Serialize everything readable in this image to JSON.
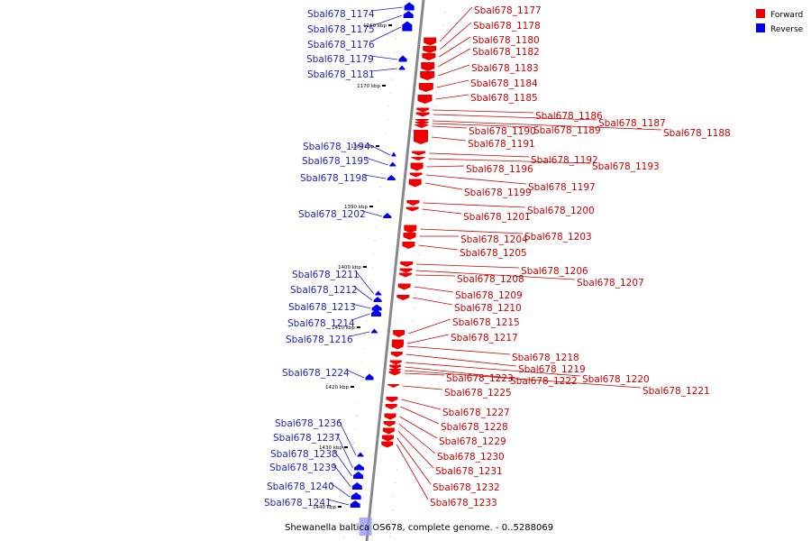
{
  "caption": "Shewanella baltica OS678, complete genome. - 0..5288069",
  "legend": [
    {
      "label": "Forward",
      "color": "#ee0000"
    },
    {
      "label": "Reverse",
      "color": "#0000ee"
    }
  ],
  "colors": {
    "forward": "#ee0000",
    "reverse": "#0000ee",
    "forward_text": "#cc0000",
    "reverse_text": "#2222bb"
  },
  "ticks": [
    "1160 kbp",
    "1170 kbp",
    "1380 kbp",
    "1390 kbp",
    "1400 kbp",
    "1410 kbp",
    "1420 kbp",
    "1430 kbp",
    "1440 kbp"
  ],
  "reverse_genes": [
    "Sbal678_1174",
    "Sbal678_1175",
    "Sbal678_1176",
    "Sbal678_1179",
    "Sbal678_1181",
    "Sbal678_1194",
    "Sbal678_1195",
    "Sbal678_1198",
    "Sbal678_1202",
    "Sbal678_1211",
    "Sbal678_1212",
    "Sbal678_1213",
    "Sbal678_1214",
    "Sbal678_1216",
    "Sbal678_1224",
    "Sbal678_1236",
    "Sbal678_1237",
    "Sbal678_1238",
    "Sbal678_1239",
    "Sbal678_1240",
    "Sbal678_1241"
  ],
  "forward_genes": [
    "Sbal678_1177",
    "Sbal678_1178",
    "Sbal678_1180",
    "Sbal678_1182",
    "Sbal678_1183",
    "Sbal678_1184",
    "Sbal678_1185",
    "Sbal678_1186",
    "Sbal678_1187",
    "Sbal678_1188",
    "Sbal678_1189",
    "Sbal678_1190",
    "Sbal678_1191",
    "Sbal678_1192",
    "Sbal678_1193",
    "Sbal678_1196",
    "Sbal678_1197",
    "Sbal678_1199",
    "Sbal678_1200",
    "Sbal678_1201",
    "Sbal678_1203",
    "Sbal678_1204",
    "Sbal678_1205",
    "Sbal678_1206",
    "Sbal678_1207",
    "Sbal678_1208",
    "Sbal678_1209",
    "Sbal678_1210",
    "Sbal678_1215",
    "Sbal678_1217",
    "Sbal678_1218",
    "Sbal678_1219",
    "Sbal678_1220",
    "Sbal678_1221",
    "Sbal678_1222",
    "Sbal678_1223",
    "Sbal678_1225",
    "Sbal678_1227",
    "Sbal678_1228",
    "Sbal678_1229",
    "Sbal678_1230",
    "Sbal678_1231",
    "Sbal678_1232",
    "Sbal678_1233"
  ]
}
